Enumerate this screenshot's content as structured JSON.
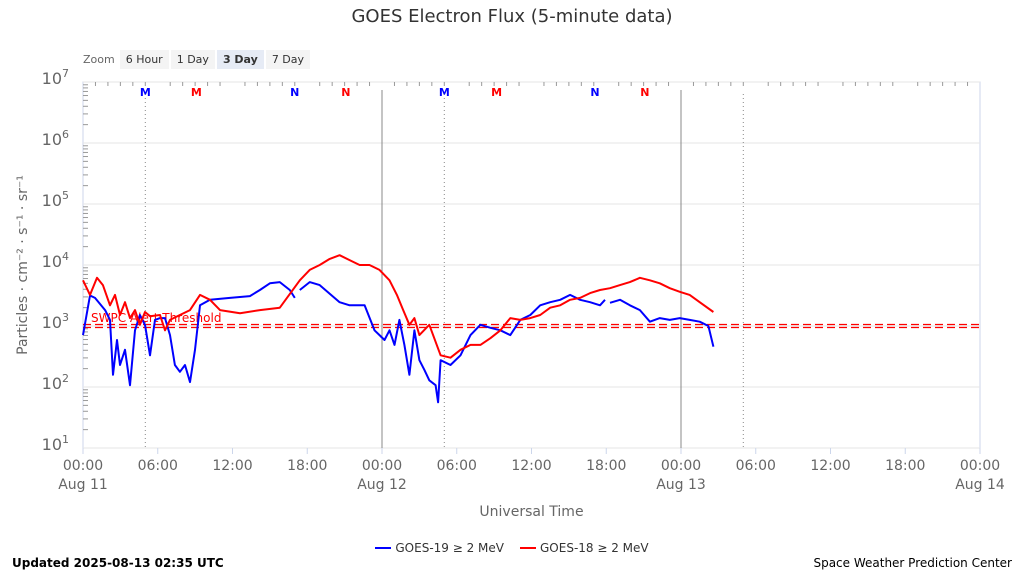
{
  "chart_data": {
    "type": "line",
    "title": "GOES Electron Flux (5-minute data)",
    "xlabel": "Universal Time",
    "ylabel": "Particles · cm⁻² · s⁻¹ · sr⁻¹",
    "yscale": "log",
    "ylim_log10": [
      1,
      7
    ],
    "xlim_hours": [
      0,
      72
    ],
    "y_ticks": [
      {
        "base": "10",
        "exp": "7",
        "v": 7
      },
      {
        "base": "10",
        "exp": "6",
        "v": 6
      },
      {
        "base": "10",
        "exp": "5",
        "v": 5
      },
      {
        "base": "10",
        "exp": "4",
        "v": 4
      },
      {
        "base": "10",
        "exp": "3",
        "v": 3
      },
      {
        "base": "10",
        "exp": "2",
        "v": 2
      },
      {
        "base": "10",
        "exp": "1",
        "v": 1
      }
    ],
    "x_ticks": [
      {
        "h": 0,
        "t": "00:00",
        "d": "Aug 11"
      },
      {
        "h": 6,
        "t": "06:00"
      },
      {
        "h": 12,
        "t": "12:00"
      },
      {
        "h": 18,
        "t": "18:00"
      },
      {
        "h": 24,
        "t": "00:00",
        "d": "Aug 12"
      },
      {
        "h": 30,
        "t": "06:00"
      },
      {
        "h": 36,
        "t": "12:00"
      },
      {
        "h": 42,
        "t": "18:00"
      },
      {
        "h": 48,
        "t": "00:00",
        "d": "Aug 13"
      },
      {
        "h": 54,
        "t": "06:00"
      },
      {
        "h": 60,
        "t": "12:00"
      },
      {
        "h": 66,
        "t": "18:00"
      },
      {
        "h": 72,
        "t": "00:00",
        "d": "Aug 14"
      }
    ],
    "threshold": {
      "label": "SWPC Alert Threshold",
      "log10": 3.0,
      "color": "#ff0000"
    },
    "markers": [
      {
        "h": 5,
        "t": "M",
        "c": "#0000ff"
      },
      {
        "h": 9.1,
        "t": "M",
        "c": "#ff0000"
      },
      {
        "h": 17,
        "t": "N",
        "c": "#0000ff"
      },
      {
        "h": 21.1,
        "t": "N",
        "c": "#ff0000"
      },
      {
        "h": 29,
        "t": "M",
        "c": "#0000ff"
      },
      {
        "h": 33.2,
        "t": "M",
        "c": "#ff0000"
      },
      {
        "h": 41.1,
        "t": "N",
        "c": "#0000ff"
      },
      {
        "h": 45.1,
        "t": "N",
        "c": "#ff0000"
      }
    ],
    "dotted_lines_hours": [
      5,
      29,
      53
    ],
    "series": [
      {
        "name": "GOES-19 ≥ 2 MeV",
        "color": "#0000ff",
        "points": [
          [
            0,
            2.85
          ],
          [
            0.56,
            3.5
          ],
          [
            0.96,
            3.46
          ],
          [
            1.77,
            3.26
          ],
          [
            2.17,
            3.1
          ],
          [
            2.41,
            2.2
          ],
          [
            2.73,
            2.77
          ],
          [
            2.97,
            2.36
          ],
          [
            3.37,
            2.61
          ],
          [
            3.77,
            2.03
          ],
          [
            4.17,
            2.93
          ],
          [
            4.57,
            3.18
          ],
          [
            4.98,
            3.02
          ],
          [
            5.38,
            2.52
          ],
          [
            5.78,
            3.1
          ],
          [
            6.18,
            3.13
          ],
          [
            6.58,
            3.13
          ],
          [
            6.98,
            2.85
          ],
          [
            7.38,
            2.36
          ],
          [
            7.78,
            2.25
          ],
          [
            8.19,
            2.36
          ],
          [
            8.59,
            2.08
          ],
          [
            8.99,
            2.61
          ],
          [
            9.39,
            3.34
          ],
          [
            10.19,
            3.43
          ],
          [
            11.8,
            3.46
          ],
          [
            13.4,
            3.49
          ],
          [
            14.2,
            3.59
          ],
          [
            15.0,
            3.7
          ],
          [
            15.8,
            3.72
          ],
          [
            16.6,
            3.59
          ],
          [
            17.0,
            3.46
          ],
          null,
          [
            17.4,
            3.59
          ],
          [
            18.2,
            3.72
          ],
          [
            19.0,
            3.67
          ],
          [
            20.6,
            3.39
          ],
          [
            21.4,
            3.34
          ],
          [
            22.6,
            3.34
          ],
          [
            23.4,
            2.93
          ],
          [
            23.8,
            2.85
          ],
          [
            24.2,
            2.77
          ],
          [
            24.6,
            2.93
          ],
          [
            25.0,
            2.69
          ],
          [
            25.4,
            3.1
          ],
          [
            25.8,
            2.69
          ],
          [
            26.2,
            2.2
          ],
          [
            26.6,
            2.93
          ],
          [
            27.0,
            2.44
          ],
          [
            27.4,
            2.28
          ],
          [
            27.8,
            2.11
          ],
          [
            28.3,
            2.03
          ],
          [
            28.5,
            1.75
          ],
          [
            28.7,
            2.44
          ],
          [
            29.5,
            2.36
          ],
          [
            30.3,
            2.52
          ],
          [
            31.1,
            2.85
          ],
          [
            31.9,
            3.02
          ],
          [
            32.7,
            2.97
          ],
          [
            33.5,
            2.93
          ],
          [
            34.3,
            2.85
          ],
          [
            35.1,
            3.1
          ],
          [
            35.9,
            3.18
          ],
          [
            36.7,
            3.34
          ],
          [
            37.5,
            3.39
          ],
          [
            38.3,
            3.43
          ],
          [
            39.1,
            3.51
          ],
          [
            39.9,
            3.43
          ],
          [
            40.7,
            3.39
          ],
          [
            41.5,
            3.34
          ],
          [
            41.9,
            3.43
          ],
          null,
          [
            42.3,
            3.38
          ],
          [
            43.1,
            3.43
          ],
          [
            43.9,
            3.34
          ],
          [
            44.7,
            3.26
          ],
          [
            45.5,
            3.07
          ],
          [
            46.3,
            3.13
          ],
          [
            47.1,
            3.1
          ],
          [
            47.9,
            3.13
          ],
          [
            48.7,
            3.1
          ],
          [
            49.5,
            3.07
          ],
          [
            50.2,
            3.0
          ],
          [
            50.6,
            2.66
          ]
        ]
      },
      {
        "name": "GOES-18 ≥ 2 MeV",
        "color": "#ff0000",
        "points": [
          [
            0,
            3.75
          ],
          [
            0.56,
            3.51
          ],
          [
            1.12,
            3.79
          ],
          [
            1.6,
            3.67
          ],
          [
            2.17,
            3.34
          ],
          [
            2.57,
            3.51
          ],
          [
            2.97,
            3.18
          ],
          [
            3.37,
            3.39
          ],
          [
            3.77,
            3.13
          ],
          [
            4.17,
            3.26
          ],
          [
            4.57,
            3.02
          ],
          [
            4.98,
            3.23
          ],
          [
            5.38,
            3.16
          ],
          [
            6.18,
            3.18
          ],
          [
            6.58,
            2.93
          ],
          [
            6.98,
            3.1
          ],
          [
            7.78,
            3.18
          ],
          [
            8.59,
            3.26
          ],
          [
            9.39,
            3.51
          ],
          [
            10.19,
            3.43
          ],
          [
            11.0,
            3.26
          ],
          [
            12.6,
            3.21
          ],
          [
            14.2,
            3.26
          ],
          [
            15.8,
            3.3
          ],
          [
            17.4,
            3.75
          ],
          [
            18.2,
            3.92
          ],
          [
            19.0,
            4.0
          ],
          [
            19.8,
            4.1
          ],
          [
            20.6,
            4.16
          ],
          [
            21.4,
            4.08
          ],
          [
            22.2,
            4.0
          ],
          [
            23.0,
            4.0
          ],
          [
            23.8,
            3.92
          ],
          [
            24.6,
            3.75
          ],
          [
            25.2,
            3.51
          ],
          [
            25.7,
            3.26
          ],
          [
            26.2,
            3.02
          ],
          [
            26.6,
            3.13
          ],
          [
            27.0,
            2.85
          ],
          [
            27.8,
            3.02
          ],
          [
            28.7,
            2.52
          ],
          [
            29.5,
            2.48
          ],
          [
            30.3,
            2.61
          ],
          [
            31.1,
            2.69
          ],
          [
            31.9,
            2.69
          ],
          [
            32.7,
            2.8
          ],
          [
            33.5,
            2.93
          ],
          [
            34.3,
            3.13
          ],
          [
            35.1,
            3.1
          ],
          [
            35.9,
            3.13
          ],
          [
            36.7,
            3.18
          ],
          [
            37.5,
            3.3
          ],
          [
            38.3,
            3.34
          ],
          [
            39.1,
            3.43
          ],
          [
            39.9,
            3.46
          ],
          [
            40.7,
            3.54
          ],
          [
            41.5,
            3.59
          ],
          [
            42.3,
            3.62
          ],
          [
            43.1,
            3.67
          ],
          [
            43.9,
            3.72
          ],
          [
            44.7,
            3.79
          ],
          [
            45.5,
            3.75
          ],
          [
            46.3,
            3.7
          ],
          [
            47.1,
            3.62
          ],
          [
            47.9,
            3.56
          ],
          [
            48.7,
            3.51
          ],
          [
            49.5,
            3.39
          ],
          [
            50.6,
            3.23
          ]
        ]
      }
    ]
  },
  "zoom": {
    "label": "Zoom",
    "buttons": [
      "6 Hour",
      "1 Day",
      "3 Day",
      "7 Day"
    ],
    "active": "3 Day"
  },
  "legend": [
    "GOES-19 ≥ 2 MeV",
    "GOES-18 ≥ 2 MeV"
  ],
  "footer": {
    "updated": "Updated 2025-08-13 02:35 UTC",
    "credit": "Space Weather Prediction Center"
  }
}
